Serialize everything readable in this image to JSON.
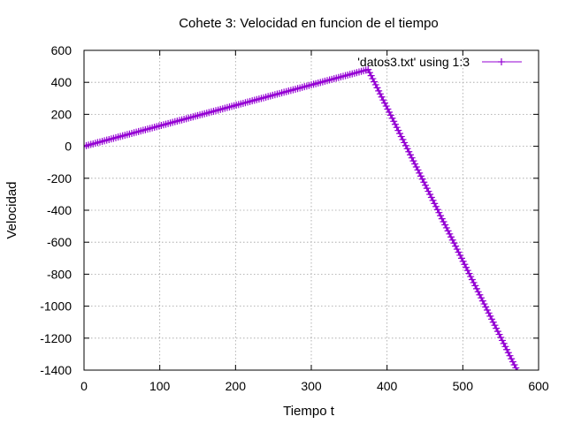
{
  "chart_data": {
    "type": "line",
    "title": "Cohete 3: Velocidad en funcion de el tiempo",
    "xlabel": "Tiempo t",
    "ylabel": "Velocidad",
    "xlim": [
      0,
      600
    ],
    "ylim": [
      -1400,
      600
    ],
    "xticks": [
      0,
      100,
      200,
      300,
      400,
      500,
      600
    ],
    "yticks": [
      600,
      400,
      200,
      0,
      -200,
      -400,
      -600,
      -800,
      -1000,
      -1200,
      -1400
    ],
    "grid": true,
    "legend_position": "top-right",
    "series": [
      {
        "name": "'datos3.txt' using 1:3",
        "color": "#9400d3",
        "marker": "plus",
        "segments": [
          {
            "x_start": 0,
            "y_start": 0,
            "x_end": 375,
            "y_end": 480,
            "step": 3
          },
          {
            "x_start": 375,
            "y_start": 480,
            "x_end": 572,
            "y_end": -1405,
            "step": 2
          }
        ]
      }
    ]
  }
}
